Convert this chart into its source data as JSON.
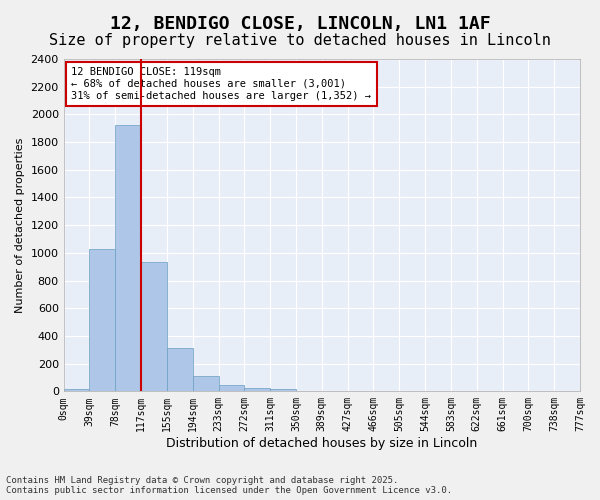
{
  "title": "12, BENDIGO CLOSE, LINCOLN, LN1 1AF",
  "subtitle": "Size of property relative to detached houses in Lincoln",
  "xlabel": "Distribution of detached houses by size in Lincoln",
  "ylabel": "Number of detached properties",
  "bar_values": [
    15,
    1025,
    1920,
    935,
    315,
    110,
    45,
    25,
    15,
    0,
    0,
    0,
    0,
    0,
    0,
    0,
    0,
    0,
    0,
    0
  ],
  "bar_labels": [
    "0sqm",
    "39sqm",
    "78sqm",
    "117sqm",
    "155sqm",
    "194sqm",
    "233sqm",
    "272sqm",
    "311sqm",
    "350sqm",
    "389sqm",
    "427sqm",
    "466sqm",
    "505sqm",
    "544sqm",
    "583sqm",
    "622sqm",
    "661sqm",
    "700sqm",
    "738sqm",
    "777sqm"
  ],
  "bar_color": "#aec6e8",
  "bar_edge_color": "#6a9fc0",
  "property_line_x": 3.0,
  "property_line_color": "#cc0000",
  "annotation_text": "12 BENDIGO CLOSE: 119sqm\n← 68% of detached houses are smaller (3,001)\n31% of semi-detached houses are larger (1,352) →",
  "annotation_box_color": "#cc0000",
  "ylim": [
    0,
    2400
  ],
  "yticks": [
    0,
    200,
    400,
    600,
    800,
    1000,
    1200,
    1400,
    1600,
    1800,
    2000,
    2200,
    2400
  ],
  "axes_facecolor": "#e8eef8",
  "title_fontsize": 13,
  "subtitle_fontsize": 11,
  "footer_text": "Contains HM Land Registry data © Crown copyright and database right 2025.\nContains public sector information licensed under the Open Government Licence v3.0.",
  "grid_color": "#ffffff"
}
